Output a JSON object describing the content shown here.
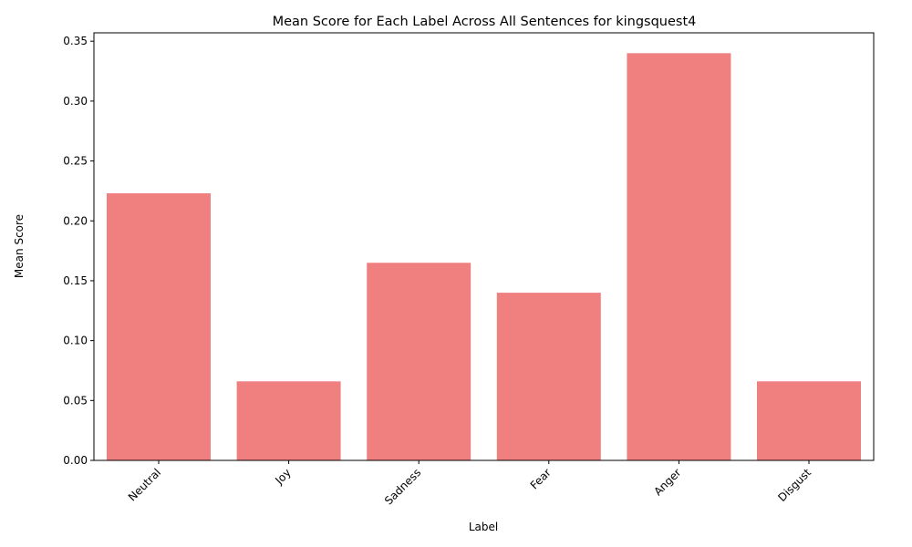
{
  "chart_data": {
    "type": "bar",
    "title": "Mean Score for Each Label Across All Sentences for kingsquest4",
    "xlabel": "Label",
    "ylabel": "Mean Score",
    "categories": [
      "Neutral",
      "Joy",
      "Sadness",
      "Fear",
      "Anger",
      "Disgust"
    ],
    "values": [
      0.223,
      0.066,
      0.165,
      0.14,
      0.34,
      0.066
    ],
    "ylim": [
      0,
      0.357
    ],
    "yticks": [
      0.0,
      0.05,
      0.1,
      0.15,
      0.2,
      0.25,
      0.3,
      0.35
    ],
    "ytick_labels": [
      "0.00",
      "0.05",
      "0.10",
      "0.15",
      "0.20",
      "0.25",
      "0.30",
      "0.35"
    ],
    "bar_color": "#f08080",
    "grid": false,
    "legend": "none"
  }
}
